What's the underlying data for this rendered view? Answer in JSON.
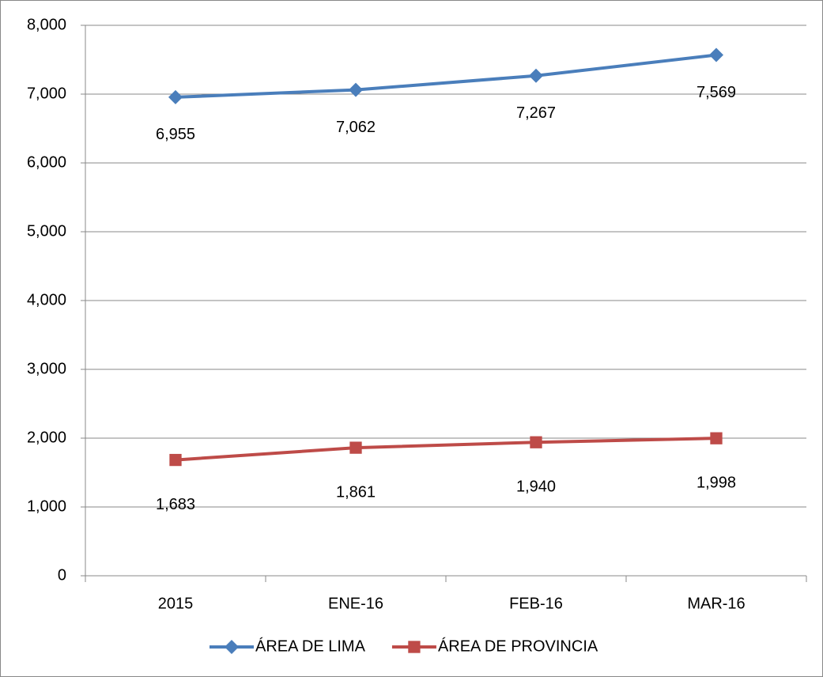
{
  "chart_data": {
    "type": "line",
    "categories": [
      "2015",
      "ENE-16",
      "FEB-16",
      "MAR-16"
    ],
    "series": [
      {
        "name": "ÁREA DE LIMA",
        "color": "#4a7ebb",
        "marker": "diamond",
        "values": [
          6955,
          7062,
          7267,
          7569
        ],
        "value_labels": [
          "6,955",
          "7,062",
          "7,267",
          "7,569"
        ]
      },
      {
        "name": "ÁREA DE PROVINCIA",
        "color": "#be4b48",
        "marker": "square",
        "values": [
          1683,
          1861,
          1940,
          1998
        ],
        "value_labels": [
          "1,683",
          "1,861",
          "1,940",
          "1,998"
        ]
      }
    ],
    "ylim": [
      0,
      8000
    ],
    "yticks": [
      0,
      {
        "value": 1000,
        "label": "1,000"
      },
      {
        "value": 2000,
        "label": "2,000"
      },
      {
        "value": 3000,
        "label": "3,000"
      },
      {
        "value": 4000,
        "label": "4,000"
      },
      {
        "value": 5000,
        "label": "5,000"
      },
      {
        "value": 6000,
        "label": "6,000"
      },
      {
        "value": 7000,
        "label": "7,000"
      },
      {
        "value": 8000,
        "label": "8,000"
      }
    ],
    "grid": true,
    "legend": "bottom"
  }
}
